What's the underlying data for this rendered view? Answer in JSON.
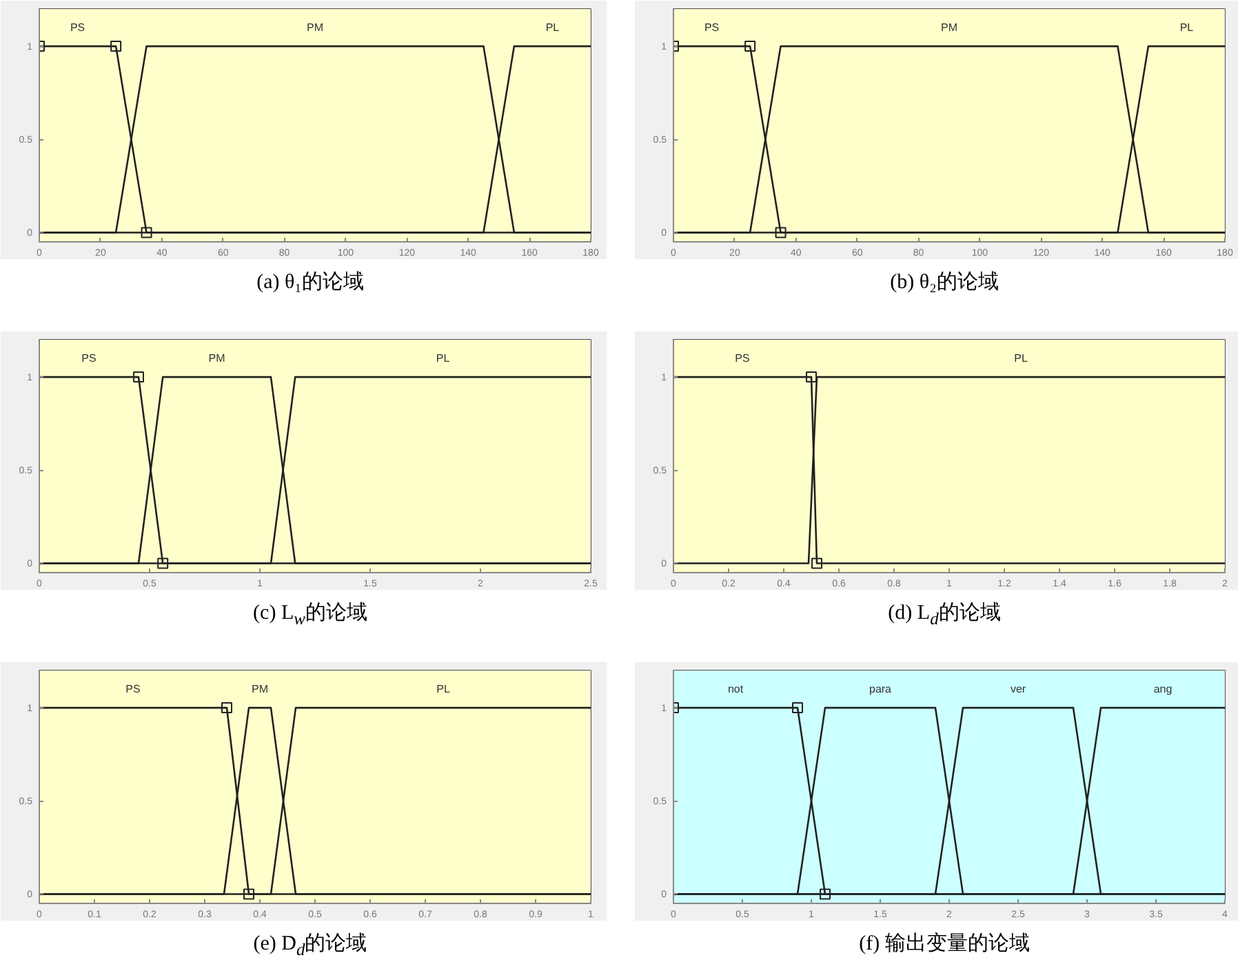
{
  "chart_data": [
    {
      "type": "line",
      "title": "(a) θ₁的论域",
      "xlim": [
        0,
        180
      ],
      "ylim": [
        -0.05,
        1.2
      ],
      "xticks": [
        0,
        20,
        40,
        60,
        80,
        100,
        120,
        140,
        160,
        180
      ],
      "yticks": [
        0,
        0.5,
        1
      ],
      "bands": [
        {
          "axis": "x",
          "from": 0,
          "to": 180,
          "color": "#ffffcc"
        }
      ],
      "series": [
        {
          "name": "PS",
          "color": "#222222",
          "x": [
            0,
            25,
            35,
            180
          ],
          "values": [
            1,
            1,
            0,
            0
          ]
        },
        {
          "name": "PM",
          "color": "#222222",
          "x": [
            0,
            25,
            35,
            145,
            155,
            180
          ],
          "values": [
            0,
            0,
            1,
            1,
            0,
            0
          ]
        },
        {
          "name": "PL",
          "color": "#222222",
          "x": [
            0,
            145,
            155,
            180
          ],
          "values": [
            0,
            0,
            1,
            1
          ]
        },
        {
          "type": "scatter",
          "marker": "square",
          "color": "#222222",
          "x": [
            0,
            25,
            35
          ],
          "values": [
            1,
            1,
            0
          ]
        }
      ]
    },
    {
      "type": "line",
      "title": "(b) θ₂的论域",
      "xlim": [
        0,
        180
      ],
      "ylim": [
        -0.05,
        1.2
      ],
      "xticks": [
        0,
        20,
        40,
        60,
        80,
        100,
        120,
        140,
        160,
        180
      ],
      "yticks": [
        0,
        0.5,
        1
      ],
      "bands": [
        {
          "axis": "x",
          "from": 0,
          "to": 180,
          "color": "#ffffcc"
        }
      ],
      "series": [
        {
          "name": "PS",
          "color": "#222222",
          "x": [
            0,
            25,
            35,
            180
          ],
          "values": [
            1,
            1,
            0,
            0
          ]
        },
        {
          "name": "PM",
          "color": "#222222",
          "x": [
            0,
            25,
            35,
            145,
            155,
            180
          ],
          "values": [
            0,
            0,
            1,
            1,
            0,
            0
          ]
        },
        {
          "name": "PL",
          "color": "#222222",
          "x": [
            0,
            145,
            155,
            180
          ],
          "values": [
            0,
            0,
            1,
            1
          ]
        },
        {
          "type": "scatter",
          "marker": "square",
          "color": "#222222",
          "x": [
            0,
            25,
            35
          ],
          "values": [
            1,
            1,
            0
          ]
        }
      ]
    },
    {
      "type": "line",
      "title": "(c) L$_{w}$的论域",
      "xlim": [
        0,
        2.5
      ],
      "ylim": [
        -0.05,
        1.2
      ],
      "xticks": [
        0,
        0.5,
        1,
        1.5,
        2,
        2.5
      ],
      "yticks": [
        0,
        0.5,
        1
      ],
      "bands": [
        {
          "axis": "x",
          "from": 0,
          "to": 2.5,
          "color": "#ffffcc"
        }
      ],
      "series": [
        {
          "name": "PS",
          "color": "#222222",
          "x": [
            0,
            0.45,
            0.56,
            2.5
          ],
          "values": [
            1,
            1,
            0,
            0
          ]
        },
        {
          "name": "PM",
          "color": "#222222",
          "x": [
            0,
            0.45,
            0.56,
            1.05,
            1.16,
            2.5
          ],
          "values": [
            0,
            0,
            1,
            1,
            0,
            0
          ]
        },
        {
          "name": "PL",
          "color": "#222222",
          "x": [
            0,
            1.05,
            1.16,
            2.5
          ],
          "values": [
            0,
            0,
            1,
            1
          ]
        },
        {
          "type": "scatter",
          "marker": "square",
          "color": "#222222",
          "x": [
            0.45,
            0.56
          ],
          "values": [
            1,
            0
          ]
        }
      ]
    },
    {
      "type": "line",
      "title": "(d) L$_{d}$的论域",
      "xlim": [
        0,
        2
      ],
      "ylim": [
        -0.05,
        1.2
      ],
      "xticks": [
        0,
        0.2,
        0.4,
        0.6,
        0.8,
        1,
        1.2,
        1.4,
        1.6,
        1.8,
        2
      ],
      "yticks": [
        0,
        0.5,
        1
      ],
      "bands": [
        {
          "axis": "x",
          "from": 0,
          "to": 2,
          "color": "#ffffcc"
        }
      ],
      "series": [
        {
          "name": "PS",
          "color": "#222222",
          "x": [
            0,
            0.5,
            0.52,
            2
          ],
          "values": [
            1,
            1,
            0,
            0
          ]
        },
        {
          "name": "PL",
          "color": "#222222",
          "x": [
            0,
            0.49,
            0.52,
            2
          ],
          "values": [
            0,
            0,
            1,
            1
          ]
        },
        {
          "type": "scatter",
          "marker": "square",
          "color": "#222222",
          "x": [
            0.5,
            0.52
          ],
          "values": [
            1,
            0
          ]
        }
      ]
    },
    {
      "type": "line",
      "title": "(e) D$_{d}$的论域",
      "xlim": [
        0,
        1
      ],
      "ylim": [
        -0.05,
        1.2
      ],
      "xticks": [
        0,
        0.1,
        0.2,
        0.3,
        0.4,
        0.5,
        0.6,
        0.7,
        0.8,
        0.9,
        1
      ],
      "yticks": [
        0,
        0.5,
        1
      ],
      "bands": [
        {
          "axis": "x",
          "from": 0,
          "to": 1,
          "color": "#ffffcc"
        }
      ],
      "series": [
        {
          "name": "PS",
          "color": "#222222",
          "x": [
            0,
            0.34,
            0.38,
            1
          ],
          "values": [
            1,
            1,
            0,
            0
          ]
        },
        {
          "name": "PM",
          "color": "#222222",
          "x": [
            0,
            0.335,
            0.38,
            0.42,
            0.465,
            1
          ],
          "values": [
            0,
            0,
            1,
            1,
            0,
            0
          ]
        },
        {
          "name": "PL",
          "color": "#222222",
          "x": [
            0,
            0.42,
            0.465,
            1
          ],
          "values": [
            0,
            0,
            1,
            1
          ]
        },
        {
          "type": "scatter",
          "marker": "square",
          "color": "#222222",
          "x": [
            0.34,
            0.38
          ],
          "values": [
            1,
            0
          ]
        }
      ]
    },
    {
      "type": "line",
      "title": "(f) 输出变量的论域",
      "xlim": [
        0,
        4
      ],
      "ylim": [
        -0.05,
        1.2
      ],
      "xticks": [
        0,
        0.5,
        1,
        1.5,
        2,
        2.5,
        3,
        3.5,
        4
      ],
      "yticks": [
        0,
        0.5,
        1
      ],
      "bands": [
        {
          "axis": "x",
          "from": 0,
          "to": 4,
          "color": "#ccffff"
        }
      ],
      "series": [
        {
          "name": "not",
          "color": "#222222",
          "x": [
            0,
            0.9,
            1.1,
            4
          ],
          "values": [
            1,
            1,
            0,
            0
          ]
        },
        {
          "name": "para",
          "color": "#222222",
          "x": [
            0,
            0.9,
            1.1,
            1.9,
            2.1,
            4
          ],
          "values": [
            0,
            0,
            1,
            1,
            0,
            0
          ]
        },
        {
          "name": "ver",
          "color": "#222222",
          "x": [
            0,
            1.9,
            2.1,
            2.9,
            3.1,
            4
          ],
          "values": [
            0,
            0,
            1,
            1,
            0,
            0
          ]
        },
        {
          "name": "ang",
          "color": "#222222",
          "x": [
            0,
            2.9,
            3.1,
            4
          ],
          "values": [
            0,
            0,
            1,
            1
          ]
        },
        {
          "type": "scatter",
          "marker": "square",
          "color": "#222222",
          "x": [
            0,
            0.9,
            1.1
          ],
          "values": [
            1,
            1,
            0
          ]
        }
      ]
    }
  ]
}
